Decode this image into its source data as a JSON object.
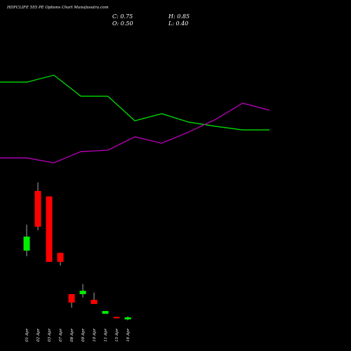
{
  "chart_data": [
    {
      "type": "line",
      "series": [
        {
          "color": "#00dd00",
          "values": [
            88.7,
            88.7,
            95.3,
            75.3,
            75.3,
            52,
            58.7,
            50.7,
            46.7,
            43.3,
            43.3
          ]
        },
        {
          "color": "#bb00bb",
          "values": [
            16.7,
            16.7,
            12,
            22.7,
            24,
            36.7,
            30.7,
            41.3,
            53.3,
            68.7,
            62
          ]
        }
      ],
      "ylim": [
        0,
        100
      ]
    },
    {
      "type": "candlestick",
      "title": "HDFCLIFE 555 PE Options Chart Munafasutra.com",
      "annotations": [
        "C: 0.75",
        "H: 0.85",
        "O: 0.50",
        "L: 0.40"
      ],
      "categories": [
        "01 Apr",
        "02 Apr",
        "03 Apr",
        "07 Apr",
        "08 Apr",
        "09 Apr",
        "10 Apr",
        "11 Apr",
        "15 Apr",
        "16 Apr"
      ],
      "open": [
        8.67,
        15.75,
        15.1,
        8.4,
        3.5,
        3.5,
        2.83,
        1.17,
        0.8,
        0.5
      ],
      "high": [
        11.75,
        16.75,
        15.1,
        8.4,
        3.5,
        4.7,
        3.67,
        1.5,
        0.8,
        0.85
      ],
      "low": [
        8.0,
        11.08,
        7.33,
        6.9,
        1.9,
        3.1,
        2.33,
        1.17,
        0.7,
        0.4
      ],
      "close": [
        10.33,
        11.5,
        7.33,
        7.33,
        2.5,
        3.9,
        2.33,
        1.5,
        0.7,
        0.75
      ],
      "up_color": "#00ee00",
      "down_color": "#ff0000",
      "ylim": [
        0,
        20
      ]
    }
  ]
}
